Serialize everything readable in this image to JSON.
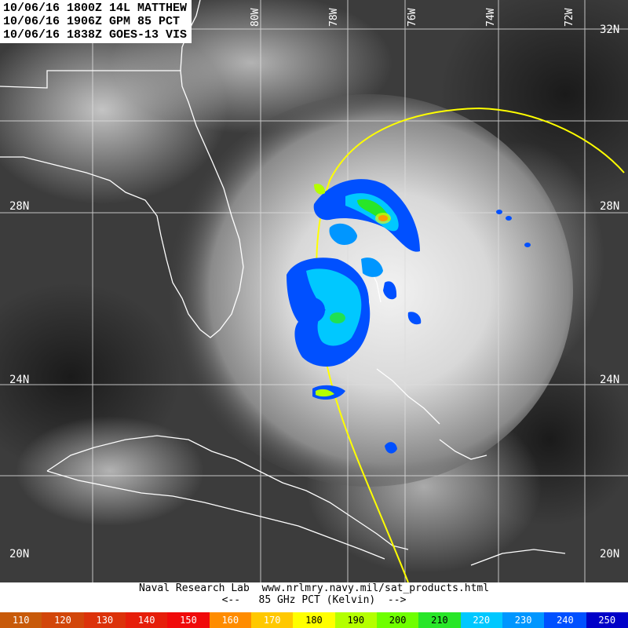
{
  "header": {
    "line1": "10/06/16 1800Z 14L MATTHEW",
    "line2": "10/06/16 1906Z GPM 85 PCT",
    "line3": "10/06/16 1838Z GOES-13 VIS"
  },
  "lat_labels": {
    "n32": "32N",
    "n28_left": "28N",
    "n28_right": "28N",
    "n24_left": "24N",
    "n24_right": "24N",
    "n20_left": "20N",
    "n20_right": "20N"
  },
  "lon_labels": {
    "w80": "80W",
    "w78": "78W",
    "w76": "76W",
    "w74": "74W",
    "w72": "72W"
  },
  "credits": {
    "line1": "Naval Research Lab  www.nrlmry.navy.mil/sat_products.html",
    "line2": "<--   85 GHz PCT (Kelvin)  -->"
  },
  "colorbar": [
    {
      "label": "110",
      "color": "#c85a0a",
      "text": "#ffffff"
    },
    {
      "label": "120",
      "color": "#d2460a",
      "text": "#ffffff"
    },
    {
      "label": "130",
      "color": "#dc320a",
      "text": "#ffffff"
    },
    {
      "label": "140",
      "color": "#e61e0a",
      "text": "#ffffff"
    },
    {
      "label": "150",
      "color": "#f00a0a",
      "text": "#ffffff"
    },
    {
      "label": "160",
      "color": "#ff8c00",
      "text": "#ffffff"
    },
    {
      "label": "170",
      "color": "#ffc800",
      "text": "#ffffff"
    },
    {
      "label": "180",
      "color": "#ffff00",
      "text": "#000000"
    },
    {
      "label": "190",
      "color": "#b4ff00",
      "text": "#000000"
    },
    {
      "label": "200",
      "color": "#6eff00",
      "text": "#000000"
    },
    {
      "label": "210",
      "color": "#28e628",
      "text": "#000000"
    },
    {
      "label": "220",
      "color": "#00c8ff",
      "text": "#ffffff"
    },
    {
      "label": "230",
      "color": "#0096ff",
      "text": "#ffffff"
    },
    {
      "label": "240",
      "color": "#0050ff",
      "text": "#ffffff"
    },
    {
      "label": "250",
      "color": "#0000c8",
      "text": "#ffffff"
    }
  ]
}
